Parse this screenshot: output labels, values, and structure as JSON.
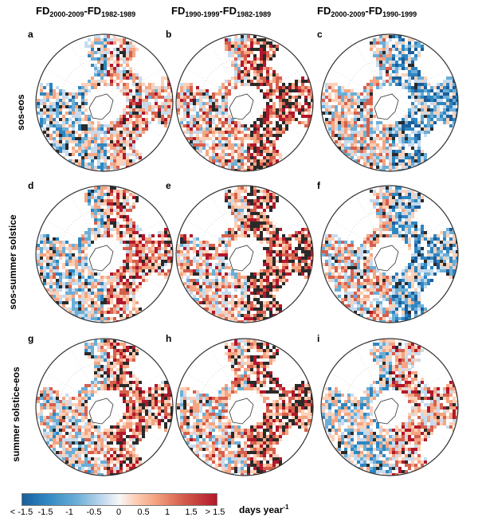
{
  "columns": [
    {
      "pre": "FD",
      "sub1": "2000-2009",
      "mid": "-FD",
      "sub2": "1982-1989"
    },
    {
      "pre": "FD",
      "sub1": "1990-1999",
      "mid": "-FD",
      "sub2": "1982-1989"
    },
    {
      "pre": "FD",
      "sub1": "2000-2009",
      "mid": "-FD",
      "sub2": "1990-1999"
    }
  ],
  "rows": [
    "sos-eos",
    "sos-summer solstice",
    "summer solstice-eos"
  ],
  "panels": [
    "a",
    "b",
    "c",
    "d",
    "e",
    "f",
    "g",
    "h",
    "i"
  ],
  "colorbar": {
    "ticks": [
      "< -1.5",
      "-1.5",
      "-1",
      "-0.5",
      "0",
      "0.5",
      "1",
      "1.5",
      "> 1.5"
    ],
    "unit_text": "days year",
    "unit_sup": "-1",
    "colors": {
      "strong_negative": "#1b5e9a",
      "neutral": "#f7f7f7",
      "strong_positive": "#b2182b"
    }
  }
}
